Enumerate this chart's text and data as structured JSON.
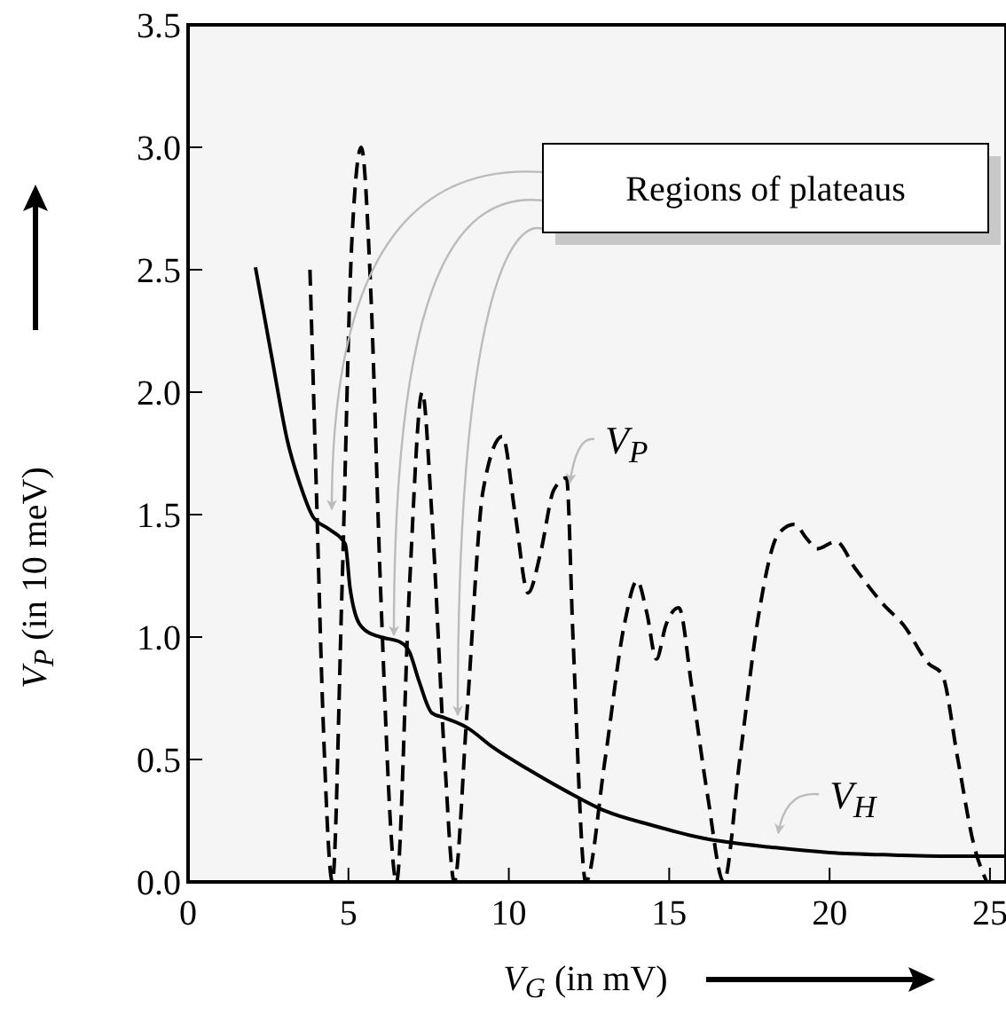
{
  "chart_data": {
    "type": "line",
    "xlabel": "V$_{G}$ (in mV)",
    "ylabel": "V$_{P}$ (in 10 meV)",
    "xlim": [
      0,
      25.5
    ],
    "ylim": [
      0,
      3.5
    ],
    "xticks": [
      0,
      5,
      10,
      15,
      20,
      25
    ],
    "yticks": [
      {
        "value": 0,
        "label": "0.0"
      },
      {
        "value": 0.5,
        "label": "0.5"
      },
      {
        "value": 1,
        "label": "1.0"
      },
      {
        "value": 1.5,
        "label": "1.5"
      },
      {
        "value": 2,
        "label": "2.0"
      },
      {
        "value": 2.5,
        "label": "2.5"
      },
      {
        "value": 3,
        "label": "3.0"
      },
      {
        "value": 3.5,
        "label": "3.5"
      }
    ],
    "annotations": [
      "Regions of plateaus"
    ],
    "series": [
      {
        "name": "V$_{P}$",
        "color": "#000000",
        "line_style": "dashed",
        "x": [
          3.8,
          4.0,
          4.2,
          4.5,
          4.8,
          5.1,
          5.4,
          5.7,
          6.0,
          6.5,
          6.9,
          7.3,
          7.6,
          8.0,
          8.3,
          8.7,
          9.2,
          9.8,
          10.2,
          10.6,
          11.0,
          11.4,
          11.8,
          12.0,
          12.4,
          13.0,
          13.6,
          14.0,
          14.3,
          14.6,
          14.9,
          15.3,
          15.7,
          16.2,
          16.7,
          17.2,
          17.8,
          18.4,
          18.9,
          19.3,
          19.6,
          20.2,
          20.8,
          21.7,
          22.3,
          23.1,
          23.5,
          24.0,
          24.5,
          24.9
        ],
        "values": [
          2.5,
          1.6,
          0.7,
          0.0,
          1.2,
          2.6,
          3.0,
          2.4,
          1.2,
          0.0,
          1.2,
          2.0,
          1.5,
          0.5,
          0.0,
          0.7,
          1.6,
          1.82,
          1.5,
          1.18,
          1.35,
          1.6,
          1.65,
          1.0,
          0.0,
          0.5,
          1.05,
          1.23,
          1.1,
          0.91,
          1.05,
          1.12,
          0.8,
          0.35,
          0.0,
          0.5,
          1.1,
          1.42,
          1.46,
          1.4,
          1.36,
          1.39,
          1.28,
          1.13,
          1.05,
          0.89,
          0.85,
          0.5,
          0.15,
          0.0
        ]
      },
      {
        "name": "V$_{H}$",
        "color": "#000000",
        "line_style": "solid",
        "x": [
          2.1,
          2.6,
          3.1,
          3.5,
          3.9,
          4.4,
          4.9,
          5.05,
          5.2,
          5.5,
          6.0,
          6.6,
          6.9,
          7.2,
          7.6,
          8.0,
          8.7,
          9.5,
          10.6,
          11.8,
          13.0,
          14.5,
          16.0,
          18.3,
          20.0,
          22.0,
          24.0,
          25.5
        ],
        "values": [
          2.51,
          2.15,
          1.8,
          1.62,
          1.49,
          1.44,
          1.38,
          1.2,
          1.1,
          1.03,
          1.0,
          0.98,
          0.94,
          0.82,
          0.69,
          0.67,
          0.63,
          0.55,
          0.46,
          0.37,
          0.29,
          0.23,
          0.18,
          0.14,
          0.12,
          0.11,
          0.105,
          0.105
        ]
      }
    ]
  }
}
